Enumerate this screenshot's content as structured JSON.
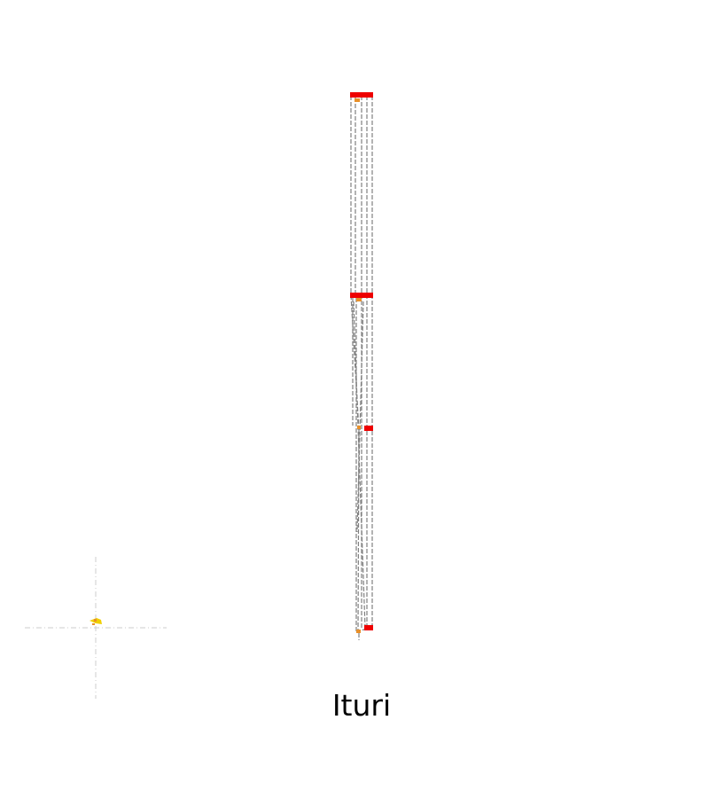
{
  "map": {
    "name": "Ituri"
  },
  "colors": {
    "background": "#ffffff",
    "route_lines": "#808080",
    "crosshair": "#cccccc",
    "marker_red": "#ee0000",
    "marker_orange": "#e8902a",
    "marker_yellow": "#f0d000"
  },
  "icons": {
    "waypoint": "red-square-marker",
    "unit": "orange-dot-marker",
    "player": "yellow-arrow-marker",
    "crosshair": "dashed-crosshair"
  }
}
